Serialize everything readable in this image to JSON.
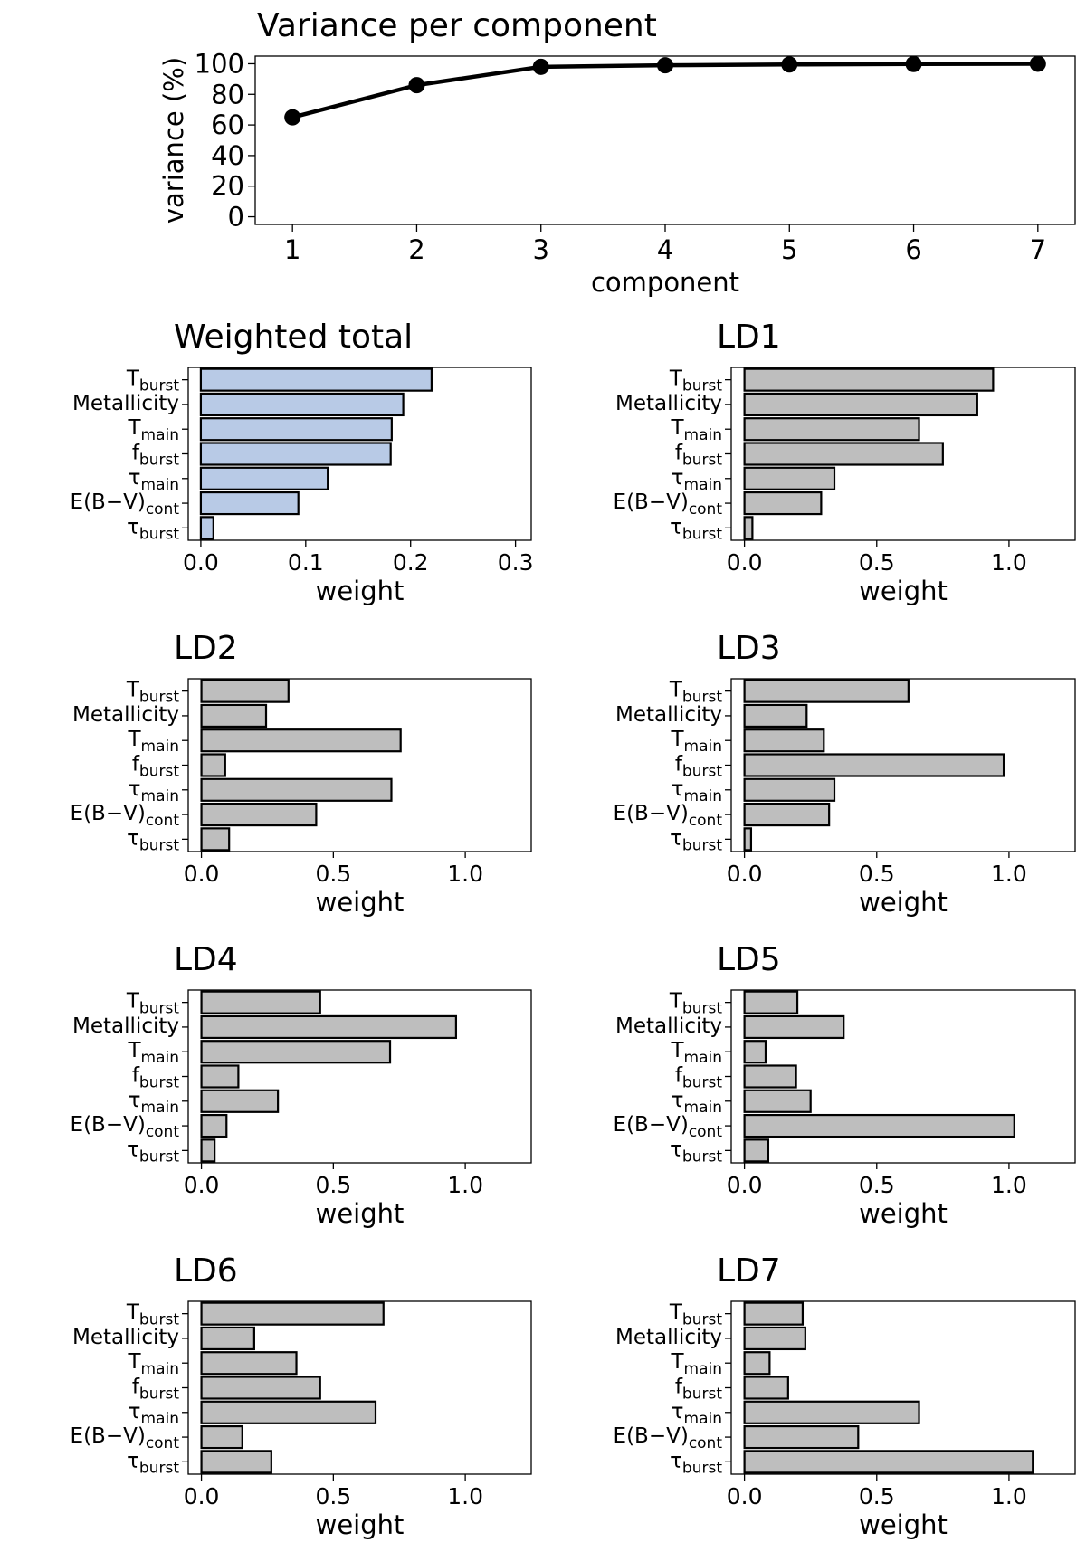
{
  "chart_data": [
    {
      "type": "line",
      "title": "Variance per component",
      "xlabel": "component",
      "ylabel": "variance (%)",
      "x": [
        1,
        2,
        3,
        4,
        5,
        6,
        7
      ],
      "values": [
        65,
        86,
        98,
        99,
        99.5,
        99.8,
        100
      ],
      "xlim": [
        0.7,
        7.3
      ],
      "ylim": [
        -5,
        105
      ],
      "xticks": [
        "1",
        "2",
        "3",
        "4",
        "5",
        "6",
        "7"
      ],
      "yticks": [
        "0",
        "20",
        "40",
        "60",
        "80",
        "100"
      ]
    },
    {
      "type": "bar",
      "title": "Weighted total",
      "xlabel": "weight",
      "fill": "#b8cae6",
      "categories": [
        "T_burst",
        "Metallicity",
        "T_main",
        "f_burst",
        "τ_main",
        "E(B−V)_cont",
        "τ_burst"
      ],
      "values": [
        0.22,
        0.193,
        0.182,
        0.181,
        0.121,
        0.093,
        0.012
      ],
      "xlim": [
        -0.012,
        0.315
      ],
      "xticks": [
        "0.0",
        "0.1",
        "0.2",
        "0.3"
      ]
    },
    {
      "type": "bar",
      "title": "LD1",
      "xlabel": "weight",
      "fill": "#bebebe",
      "categories": [
        "T_burst",
        "Metallicity",
        "T_main",
        "f_burst",
        "τ_main",
        "E(B−V)_cont",
        "τ_burst"
      ],
      "values": [
        0.94,
        0.88,
        0.66,
        0.75,
        0.34,
        0.29,
        0.03
      ],
      "xlim": [
        -0.05,
        1.25
      ],
      "xticks": [
        "0.0",
        "0.5",
        "1.0"
      ]
    },
    {
      "type": "bar",
      "title": "LD2",
      "xlabel": "weight",
      "fill": "#bebebe",
      "categories": [
        "T_burst",
        "Metallicity",
        "T_main",
        "f_burst",
        "τ_main",
        "E(B−V)_cont",
        "τ_burst"
      ],
      "values": [
        0.33,
        0.245,
        0.755,
        0.09,
        0.72,
        0.435,
        0.105
      ],
      "xlim": [
        -0.05,
        1.25
      ],
      "xticks": [
        "0.0",
        "0.5",
        "1.0"
      ]
    },
    {
      "type": "bar",
      "title": "LD3",
      "xlabel": "weight",
      "fill": "#bebebe",
      "categories": [
        "T_burst",
        "Metallicity",
        "T_main",
        "f_burst",
        "τ_main",
        "E(B−V)_cont",
        "τ_burst"
      ],
      "values": [
        0.62,
        0.235,
        0.3,
        0.98,
        0.34,
        0.32,
        0.025
      ],
      "xlim": [
        -0.05,
        1.25
      ],
      "xticks": [
        "0.0",
        "0.5",
        "1.0"
      ]
    },
    {
      "type": "bar",
      "title": "LD4",
      "xlabel": "weight",
      "fill": "#bebebe",
      "categories": [
        "T_burst",
        "Metallicity",
        "T_main",
        "f_burst",
        "τ_main",
        "E(B−V)_cont",
        "τ_burst"
      ],
      "values": [
        0.45,
        0.965,
        0.715,
        0.14,
        0.29,
        0.095,
        0.05
      ],
      "xlim": [
        -0.05,
        1.25
      ],
      "xticks": [
        "0.0",
        "0.5",
        "1.0"
      ]
    },
    {
      "type": "bar",
      "title": "LD5",
      "xlabel": "weight",
      "fill": "#bebebe",
      "categories": [
        "T_burst",
        "Metallicity",
        "T_main",
        "f_burst",
        "τ_main",
        "E(B−V)_cont",
        "τ_burst"
      ],
      "values": [
        0.2,
        0.375,
        0.08,
        0.195,
        0.25,
        1.02,
        0.09
      ],
      "xlim": [
        -0.05,
        1.25
      ],
      "xticks": [
        "0.0",
        "0.5",
        "1.0"
      ]
    },
    {
      "type": "bar",
      "title": "LD6",
      "xlabel": "weight",
      "fill": "#bebebe",
      "categories": [
        "T_burst",
        "Metallicity",
        "T_main",
        "f_burst",
        "τ_main",
        "E(B−V)_cont",
        "τ_burst"
      ],
      "values": [
        0.69,
        0.2,
        0.36,
        0.45,
        0.66,
        0.155,
        0.265
      ],
      "xlim": [
        -0.05,
        1.25
      ],
      "xticks": [
        "0.0",
        "0.5",
        "1.0"
      ]
    },
    {
      "type": "bar",
      "title": "LD7",
      "xlabel": "weight",
      "fill": "#bebebe",
      "categories": [
        "T_burst",
        "Metallicity",
        "T_main",
        "f_burst",
        "τ_main",
        "E(B−V)_cont",
        "τ_burst"
      ],
      "values": [
        0.22,
        0.23,
        0.095,
        0.165,
        0.66,
        0.43,
        1.09
      ],
      "xlim": [
        -0.05,
        1.25
      ],
      "xticks": [
        "0.0",
        "0.5",
        "1.0"
      ]
    }
  ]
}
